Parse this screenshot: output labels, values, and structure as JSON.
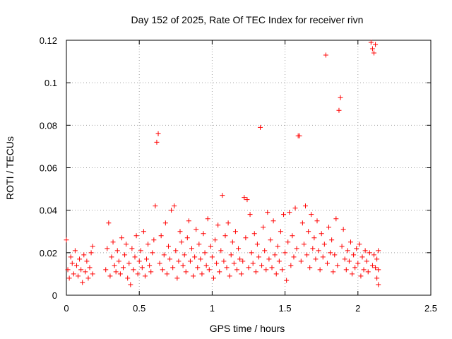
{
  "chart_data": {
    "type": "scatter",
    "title": "Day 152 of 2025, Rate Of TEC Index for receiver rivn",
    "xlabel": "GPS time / hours",
    "ylabel": "ROTI / TECUs",
    "xlim": [
      0,
      2.5
    ],
    "ylim": [
      0,
      0.12
    ],
    "x_ticks": [
      0,
      0.5,
      1,
      1.5,
      2,
      2.5
    ],
    "x_tick_labels": [
      "0",
      "0.5",
      "1",
      "1.5",
      "2",
      "2.5"
    ],
    "y_ticks": [
      0,
      0.02,
      0.04,
      0.06,
      0.08,
      0.1,
      0.12
    ],
    "y_tick_labels": [
      "0",
      "0.02",
      "0.04",
      "0.06",
      "0.08",
      "0.1",
      "0.12"
    ],
    "grid": true,
    "marker": "+",
    "series": [
      {
        "name": "ROTI",
        "color": "#ff0000",
        "points": [
          [
            0.0,
            0.026
          ],
          [
            0.01,
            0.012
          ],
          [
            0.02,
            0.008
          ],
          [
            0.03,
            0.018
          ],
          [
            0.04,
            0.015
          ],
          [
            0.05,
            0.01
          ],
          [
            0.06,
            0.021
          ],
          [
            0.07,
            0.014
          ],
          [
            0.08,
            0.009
          ],
          [
            0.09,
            0.017
          ],
          [
            0.1,
            0.012
          ],
          [
            0.11,
            0.006
          ],
          [
            0.12,
            0.019
          ],
          [
            0.13,
            0.011
          ],
          [
            0.14,
            0.016
          ],
          [
            0.15,
            0.008
          ],
          [
            0.16,
            0.013
          ],
          [
            0.17,
            0.02
          ],
          [
            0.18,
            0.023
          ],
          [
            0.18,
            0.01
          ],
          [
            0.27,
            0.012
          ],
          [
            0.28,
            0.022
          ],
          [
            0.29,
            0.034
          ],
          [
            0.3,
            0.009
          ],
          [
            0.31,
            0.018
          ],
          [
            0.32,
            0.025
          ],
          [
            0.33,
            0.014
          ],
          [
            0.34,
            0.011
          ],
          [
            0.35,
            0.021
          ],
          [
            0.36,
            0.016
          ],
          [
            0.37,
            0.01
          ],
          [
            0.38,
            0.027
          ],
          [
            0.39,
            0.013
          ],
          [
            0.4,
            0.019
          ],
          [
            0.41,
            0.024
          ],
          [
            0.42,
            0.008
          ],
          [
            0.43,
            0.015
          ],
          [
            0.44,
            0.005
          ],
          [
            0.45,
            0.022
          ],
          [
            0.46,
            0.012
          ],
          [
            0.47,
            0.018
          ],
          [
            0.48,
            0.028
          ],
          [
            0.49,
            0.01
          ],
          [
            0.5,
            0.016
          ],
          [
            0.51,
            0.021
          ],
          [
            0.52,
            0.013
          ],
          [
            0.53,
            0.03
          ],
          [
            0.54,
            0.009
          ],
          [
            0.55,
            0.017
          ],
          [
            0.56,
            0.024
          ],
          [
            0.57,
            0.014
          ],
          [
            0.58,
            0.011
          ],
          [
            0.59,
            0.02
          ],
          [
            0.6,
            0.026
          ],
          [
            0.61,
            0.042
          ],
          [
            0.62,
            0.072
          ],
          [
            0.63,
            0.076
          ],
          [
            0.64,
            0.015
          ],
          [
            0.65,
            0.028
          ],
          [
            0.66,
            0.012
          ],
          [
            0.67,
            0.019
          ],
          [
            0.68,
            0.034
          ],
          [
            0.69,
            0.01
          ],
          [
            0.7,
            0.023
          ],
          [
            0.71,
            0.017
          ],
          [
            0.72,
            0.04
          ],
          [
            0.73,
            0.013
          ],
          [
            0.74,
            0.042
          ],
          [
            0.75,
            0.021
          ],
          [
            0.76,
            0.008
          ],
          [
            0.77,
            0.016
          ],
          [
            0.78,
            0.03
          ],
          [
            0.79,
            0.025
          ],
          [
            0.8,
            0.014
          ],
          [
            0.81,
            0.019
          ],
          [
            0.82,
            0.011
          ],
          [
            0.83,
            0.027
          ],
          [
            0.84,
            0.035
          ],
          [
            0.85,
            0.016
          ],
          [
            0.86,
            0.022
          ],
          [
            0.87,
            0.009
          ],
          [
            0.88,
            0.018
          ],
          [
            0.89,
            0.031
          ],
          [
            0.9,
            0.013
          ],
          [
            0.91,
            0.024
          ],
          [
            0.92,
            0.017
          ],
          [
            0.93,
            0.01
          ],
          [
            0.94,
            0.029
          ],
          [
            0.95,
            0.02
          ],
          [
            0.96,
            0.014
          ],
          [
            0.97,
            0.036
          ],
          [
            0.98,
            0.012
          ],
          [
            0.99,
            0.023
          ],
          [
            1.0,
            0.018
          ],
          [
            1.01,
            0.008
          ],
          [
            1.02,
            0.026
          ],
          [
            1.03,
            0.015
          ],
          [
            1.04,
            0.033
          ],
          [
            1.05,
            0.011
          ],
          [
            1.06,
            0.021
          ],
          [
            1.07,
            0.047
          ],
          [
            1.08,
            0.016
          ],
          [
            1.09,
            0.028
          ],
          [
            1.1,
            0.013
          ],
          [
            1.11,
            0.034
          ],
          [
            1.12,
            0.009
          ],
          [
            1.13,
            0.019
          ],
          [
            1.14,
            0.025
          ],
          [
            1.15,
            0.015
          ],
          [
            1.16,
            0.03
          ],
          [
            1.17,
            0.012
          ],
          [
            1.18,
            0.022
          ],
          [
            1.19,
            0.017
          ],
          [
            1.2,
            0.01
          ],
          [
            1.21,
            0.016
          ],
          [
            1.22,
            0.046
          ],
          [
            1.23,
            0.027
          ],
          [
            1.24,
            0.045
          ],
          [
            1.25,
            0.013
          ],
          [
            1.26,
            0.038
          ],
          [
            1.27,
            0.02
          ],
          [
            1.28,
            0.015
          ],
          [
            1.29,
            0.029
          ],
          [
            1.3,
            0.011
          ],
          [
            1.31,
            0.024
          ],
          [
            1.32,
            0.018
          ],
          [
            1.33,
            0.079
          ],
          [
            1.34,
            0.014
          ],
          [
            1.35,
            0.032
          ],
          [
            1.36,
            0.021
          ],
          [
            1.37,
            0.012
          ],
          [
            1.38,
            0.039
          ],
          [
            1.39,
            0.017
          ],
          [
            1.4,
            0.026
          ],
          [
            1.41,
            0.013
          ],
          [
            1.42,
            0.035
          ],
          [
            1.43,
            0.019
          ],
          [
            1.44,
            0.01
          ],
          [
            1.45,
            0.023
          ],
          [
            1.46,
            0.016
          ],
          [
            1.47,
            0.03
          ],
          [
            1.48,
            0.012
          ],
          [
            1.49,
            0.038
          ],
          [
            1.5,
            0.02
          ],
          [
            1.51,
            0.007
          ],
          [
            1.52,
            0.025
          ],
          [
            1.53,
            0.039
          ],
          [
            1.54,
            0.014
          ],
          [
            1.55,
            0.028
          ],
          [
            1.56,
            0.018
          ],
          [
            1.57,
            0.041
          ],
          [
            1.58,
            0.022
          ],
          [
            1.59,
            0.075
          ],
          [
            1.6,
            0.075
          ],
          [
            1.61,
            0.016
          ],
          [
            1.62,
            0.034
          ],
          [
            1.63,
            0.024
          ],
          [
            1.64,
            0.042
          ],
          [
            1.65,
            0.019
          ],
          [
            1.66,
            0.03
          ],
          [
            1.67,
            0.013
          ],
          [
            1.68,
            0.038
          ],
          [
            1.69,
            0.022
          ],
          [
            1.7,
            0.027
          ],
          [
            1.71,
            0.017
          ],
          [
            1.72,
            0.035
          ],
          [
            1.73,
            0.021
          ],
          [
            1.74,
            0.012
          ],
          [
            1.75,
            0.029
          ],
          [
            1.76,
            0.018
          ],
          [
            1.77,
            0.024
          ],
          [
            1.78,
            0.113
          ],
          [
            1.79,
            0.015
          ],
          [
            1.8,
            0.032
          ],
          [
            1.81,
            0.02
          ],
          [
            1.82,
            0.026
          ],
          [
            1.83,
            0.011
          ],
          [
            1.84,
            0.019
          ],
          [
            1.85,
            0.036
          ],
          [
            1.86,
            0.014
          ],
          [
            1.87,
            0.087
          ],
          [
            1.88,
            0.093
          ],
          [
            1.89,
            0.023
          ],
          [
            1.9,
            0.031
          ],
          [
            1.91,
            0.017
          ],
          [
            1.92,
            0.012
          ],
          [
            1.93,
            0.021
          ],
          [
            1.94,
            0.016
          ],
          [
            1.95,
            0.025
          ],
          [
            1.96,
            0.01
          ],
          [
            1.97,
            0.019
          ],
          [
            1.98,
            0.013
          ],
          [
            1.99,
            0.022
          ],
          [
            2.0,
            0.015
          ],
          [
            2.01,
            0.024
          ],
          [
            2.02,
            0.009
          ],
          [
            2.03,
            0.018
          ],
          [
            2.04,
            0.012
          ],
          [
            2.05,
            0.021
          ],
          [
            2.06,
            0.016
          ],
          [
            2.07,
            0.011
          ],
          [
            2.08,
            0.02
          ],
          [
            2.09,
            0.119
          ],
          [
            2.1,
            0.116
          ],
          [
            2.1,
            0.014
          ],
          [
            2.11,
            0.114
          ],
          [
            2.11,
            0.019
          ],
          [
            2.12,
            0.118
          ],
          [
            2.12,
            0.013
          ],
          [
            2.13,
            0.017
          ],
          [
            2.13,
            0.008
          ],
          [
            2.14,
            0.021
          ],
          [
            2.14,
            0.012
          ],
          [
            2.14,
            0.005
          ]
        ]
      }
    ]
  }
}
